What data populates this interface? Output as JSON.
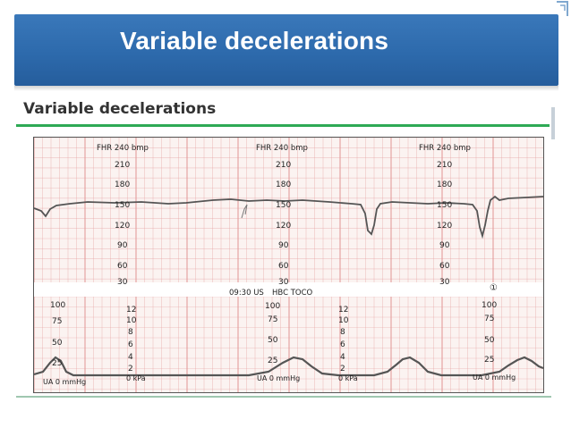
{
  "slide": {
    "title": "Variable decelerations",
    "subtitle": "Variable decelerations"
  },
  "colors": {
    "header": "#2d6aac",
    "accent_green": "#2eaa55",
    "grid": "#e39b9b",
    "trace": "#555555"
  },
  "ctg": {
    "time_label": "09:30 US",
    "toco_label": "HBC TOCO",
    "marker": "①",
    "fhr_columns": [
      {
        "header": "FHR 240 bmp",
        "scale": [
          "210",
          "180",
          "150",
          "120",
          "90",
          "60",
          "30"
        ]
      },
      {
        "header": "FHR 240 bmp",
        "scale": [
          "210",
          "180",
          "150",
          "120",
          "90",
          "60",
          "30"
        ]
      },
      {
        "header": "FHR 240 bmp",
        "scale": [
          "210",
          "180",
          "150",
          "120",
          "90",
          "60",
          "30"
        ]
      }
    ],
    "ua_columns": [
      {
        "scale": [
          "100",
          "75",
          "50",
          "25"
        ],
        "zero_label": "UA 0 mmHg"
      },
      {
        "scale": [
          "100",
          "75",
          "50",
          "25"
        ],
        "zero_label": "UA 0 mmHg"
      },
      {
        "scale": [
          "100",
          "75",
          "50",
          "25"
        ],
        "zero_label": "UA 0 mmHg"
      }
    ],
    "kpa_columns": [
      {
        "scale": [
          "12",
          "10",
          "8",
          "6",
          "4",
          "2"
        ],
        "zero_label": "0 kPa"
      },
      {
        "scale": [
          "12",
          "10",
          "8",
          "6",
          "4",
          "2"
        ],
        "zero_label": "0 kPa"
      }
    ]
  }
}
